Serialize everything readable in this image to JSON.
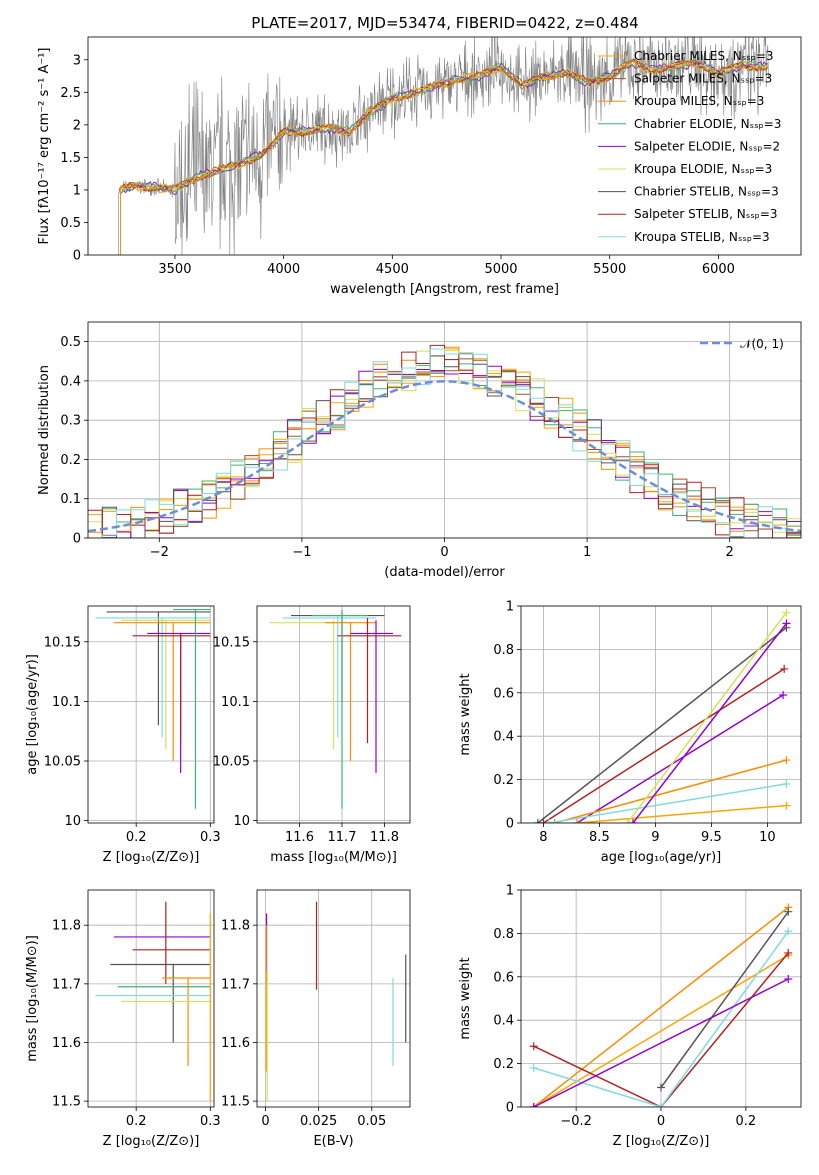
{
  "figure_title": "PLATE=2017, MJD=53474, FIBERID=0422, z=0.484",
  "colors": {
    "series": [
      "#ffa500",
      "#a0522d",
      "#ff8c00",
      "#3cb371",
      "#9400d3",
      "#d4e157",
      "#555555",
      "#b22222",
      "#7fdbe0"
    ],
    "grey": "#808080",
    "normal": "#6a8fd8"
  },
  "chart_data": [
    {
      "id": "spectrum",
      "type": "line",
      "xlabel": "wavelength [Angstrom, rest frame]",
      "ylabel": "Flux [fλ10⁻¹⁷ erg cm⁻² s⁻¹ A⁻¹]",
      "xlim": [
        3100,
        6380
      ],
      "ylim": [
        0,
        3.35
      ],
      "xticks": [
        3500,
        4000,
        4500,
        5000,
        5500,
        6000
      ],
      "yticks": [
        0.0,
        0.5,
        1.0,
        1.5,
        2.0,
        2.5,
        3.0
      ],
      "legend": [
        "Chabrier MILES, Nₛₛₚ=3",
        "Salpeter MILES, Nₛₛₚ=3",
        "Kroupa MILES, Nₛₛₚ=3",
        "Chabrier ELODIE, Nₛₛₚ=3",
        "Salpeter ELODIE, Nₛₛₚ=2",
        "Kroupa ELODIE, Nₛₛₚ=3",
        "Chabrier STELIB, Nₛₛₚ=3",
        "Salpeter STELIB, Nₛₛₚ=3",
        "Kroupa STELIB, Nₛₛₚ=3"
      ],
      "legend_position": "upper right",
      "model_x": [
        3250,
        3300,
        3400,
        3500,
        3600,
        3700,
        3800,
        3900,
        3950,
        4000,
        4100,
        4200,
        4300,
        4400,
        4500,
        4600,
        4700,
        4800,
        4900,
        5000,
        5100,
        5200,
        5300,
        5400,
        5500,
        5600,
        5700,
        5800,
        5900,
        6000,
        6100,
        6200
      ],
      "model_y": [
        1.0,
        1.05,
        1.05,
        1.0,
        1.2,
        1.3,
        1.4,
        1.55,
        1.7,
        1.9,
        1.9,
        1.95,
        1.9,
        2.2,
        2.4,
        2.5,
        2.6,
        2.7,
        2.75,
        2.9,
        2.6,
        2.75,
        2.8,
        2.65,
        2.75,
        2.95,
        2.85,
        2.9,
        2.95,
        2.8,
        2.9,
        2.9
      ]
    },
    {
      "id": "residuals",
      "type": "step",
      "xlabel": "(data-model)/error",
      "ylabel": "Normed distribution",
      "xlim": [
        -2.5,
        2.5
      ],
      "ylim": [
        0,
        0.55
      ],
      "xticks": [
        -2,
        -1,
        0,
        1,
        2
      ],
      "yticks": [
        0.0,
        0.1,
        0.2,
        0.3,
        0.4,
        0.5
      ],
      "legend": [
        "𝒩(0, 1)"
      ],
      "legend_position": "upper right"
    },
    {
      "id": "age_vs_Z",
      "type": "errorbar",
      "xlabel": "Z [log₁₀(Z/Z⊙)]",
      "ylabel": "age  [log₁₀(age/yr)]",
      "xlim": [
        0.135,
        0.305
      ],
      "ylim": [
        9.998,
        10.18
      ],
      "xticks": [
        0.2,
        0.3
      ],
      "yticks": [
        10.0,
        10.05,
        10.1,
        10.15
      ],
      "points": [
        {
          "x": 0.23,
          "y": 10.175,
          "xlo": 0.16,
          "xhi": 0.3,
          "ylo": 10.08,
          "yhi": 10.175,
          "c": 6
        },
        {
          "x": 0.235,
          "y": 10.17,
          "xlo": 0.145,
          "xhi": 0.3,
          "ylo": 10.07,
          "yhi": 10.17,
          "c": 8
        },
        {
          "x": 0.24,
          "y": 10.168,
          "xlo": 0.18,
          "xhi": 0.3,
          "ylo": 10.06,
          "yhi": 10.168,
          "c": 5
        },
        {
          "x": 0.25,
          "y": 10.166,
          "xlo": 0.17,
          "xhi": 0.3,
          "ylo": 10.05,
          "yhi": 10.166,
          "c": 2
        },
        {
          "x": 0.26,
          "y": 10.157,
          "xlo": 0.215,
          "xhi": 0.3,
          "ylo": 10.04,
          "yhi": 10.157,
          "c": 4
        },
        {
          "x": 0.26,
          "y": 10.155,
          "xlo": 0.195,
          "xhi": 0.3,
          "ylo": 10.065,
          "yhi": 10.155,
          "c": 7
        },
        {
          "x": 0.28,
          "y": 10.177,
          "xlo": 0.25,
          "xhi": 0.3,
          "ylo": 10.01,
          "yhi": 10.177,
          "c": 3
        }
      ]
    },
    {
      "id": "age_vs_mass",
      "type": "errorbar",
      "xlabel": "mass [log₁₀(M/M⊙)]",
      "ylabel": "",
      "xlim": [
        11.5,
        11.86
      ],
      "ylim": [
        9.998,
        10.18
      ],
      "xticks": [
        11.6,
        11.7,
        11.8
      ],
      "yticks": [
        10.0,
        10.05,
        10.1,
        10.15
      ],
      "points": [
        {
          "x": 11.7,
          "y": 10.172,
          "xlo": 11.58,
          "xhi": 11.8,
          "ylo": 10.1,
          "yhi": 10.175,
          "c": 6
        },
        {
          "x": 11.69,
          "y": 10.17,
          "xlo": 11.56,
          "xhi": 11.78,
          "ylo": 10.07,
          "yhi": 10.172,
          "c": 8
        },
        {
          "x": 11.68,
          "y": 10.166,
          "xlo": 11.53,
          "xhi": 11.72,
          "ylo": 10.06,
          "yhi": 10.168,
          "c": 5
        },
        {
          "x": 11.72,
          "y": 10.166,
          "xlo": 11.66,
          "xhi": 11.78,
          "ylo": 10.05,
          "yhi": 10.166,
          "c": 2
        },
        {
          "x": 11.78,
          "y": 10.157,
          "xlo": 11.72,
          "xhi": 11.82,
          "ylo": 10.04,
          "yhi": 10.168,
          "c": 4
        },
        {
          "x": 11.76,
          "y": 10.155,
          "xlo": 11.69,
          "xhi": 11.84,
          "ylo": 10.065,
          "yhi": 10.17,
          "c": 7
        },
        {
          "x": 11.7,
          "y": 10.172,
          "xlo": 11.63,
          "xhi": 11.76,
          "ylo": 10.01,
          "yhi": 10.177,
          "c": 3
        }
      ]
    },
    {
      "id": "massweight_vs_age",
      "type": "line",
      "xlabel": "age  [log₁₀(age/yr)]",
      "ylabel": "mass weight",
      "xlim": [
        7.8,
        10.3
      ],
      "ylim": [
        0,
        1
      ],
      "xticks": [
        8.0,
        8.5,
        9.0,
        9.5,
        10.0
      ],
      "yticks": [
        0.0,
        0.2,
        0.4,
        0.6,
        0.8,
        1.0
      ],
      "series": [
        {
          "x": [
            7.95,
            10.17
          ],
          "y": [
            0.0,
            0.9
          ],
          "c": 6
        },
        {
          "x": [
            8.0,
            10.15
          ],
          "y": [
            0.0,
            0.71
          ],
          "c": 7
        },
        {
          "x": [
            8.3,
            10.14
          ],
          "y": [
            0.0,
            0.59
          ],
          "c": 4
        },
        {
          "x": [
            8.1,
            10.17
          ],
          "y": [
            0.0,
            0.29
          ],
          "c": 2
        },
        {
          "x": [
            8.05,
            10.17
          ],
          "y": [
            0.0,
            0.18
          ],
          "c": 8
        },
        {
          "x": [
            8.3,
            10.17
          ],
          "y": [
            0.0,
            0.08
          ],
          "c": 0
        },
        {
          "x": [
            8.75,
            10.17
          ],
          "y": [
            0.0,
            0.97
          ],
          "c": 5
        },
        {
          "x": [
            8.8,
            10.17
          ],
          "y": [
            0.0,
            0.92
          ],
          "c": 4
        }
      ]
    },
    {
      "id": "mass_vs_Z",
      "type": "errorbar",
      "xlabel": "Z [log₁₀(Z/Z⊙)]",
      "ylabel": "mass [log₁₀(M/M⊙)]",
      "xlim": [
        0.135,
        0.305
      ],
      "ylim": [
        11.49,
        11.86
      ],
      "xticks": [
        0.2,
        0.3
      ],
      "yticks": [
        11.5,
        11.6,
        11.7,
        11.8
      ],
      "points": [
        {
          "x": 0.23,
          "y": 11.78,
          "xlo": 0.17,
          "xhi": 0.3,
          "ylo": 11.78,
          "yhi": 11.78,
          "c": 4
        },
        {
          "x": 0.24,
          "y": 11.758,
          "xlo": 0.195,
          "xhi": 0.3,
          "ylo": 11.7,
          "yhi": 11.84,
          "c": 7
        },
        {
          "x": 0.25,
          "y": 11.733,
          "xlo": 0.165,
          "xhi": 0.3,
          "ylo": 11.6,
          "yhi": 11.733,
          "c": 6
        },
        {
          "x": 0.27,
          "y": 11.71,
          "xlo": 0.235,
          "xhi": 0.3,
          "ylo": 11.56,
          "yhi": 11.71,
          "c": 2
        },
        {
          "x": 0.25,
          "y": 11.695,
          "xlo": 0.175,
          "xhi": 0.3,
          "ylo": 11.695,
          "yhi": 11.695,
          "c": 3
        },
        {
          "x": 0.24,
          "y": 11.68,
          "xlo": 0.145,
          "xhi": 0.3,
          "ylo": 11.68,
          "yhi": 11.68,
          "c": 8
        },
        {
          "x": 0.25,
          "y": 11.67,
          "xlo": 0.18,
          "xhi": 0.3,
          "ylo": 11.67,
          "yhi": 11.67,
          "c": 5
        },
        {
          "x": 0.3,
          "y": 11.7,
          "xlo": 0.3,
          "xhi": 0.3,
          "ylo": 11.5,
          "yhi": 11.82,
          "c": 0
        }
      ]
    },
    {
      "id": "mass_vs_ebv",
      "type": "errorbar",
      "xlabel": "E(B-V)",
      "ylabel": "",
      "xlim": [
        -0.004,
        0.068
      ],
      "ylim": [
        11.49,
        11.86
      ],
      "xticks": [
        0.0,
        0.025,
        0.05
      ],
      "yticks": [
        11.5,
        11.6,
        11.7,
        11.8
      ],
      "points": [
        {
          "x": 0.024,
          "y": 11.76,
          "xlo": 0.024,
          "xhi": 0.024,
          "ylo": 11.69,
          "yhi": 11.84,
          "c": 7
        },
        {
          "x": 0.06,
          "y": 11.64,
          "xlo": 0.06,
          "xhi": 0.06,
          "ylo": 11.56,
          "yhi": 11.71,
          "c": 8
        },
        {
          "x": 0.066,
          "y": 11.67,
          "xlo": 0.066,
          "xhi": 0.066,
          "ylo": 11.6,
          "yhi": 11.75,
          "c": 6
        },
        {
          "x": 0.0005,
          "y": 11.75,
          "xlo": 0.0005,
          "xhi": 0.0005,
          "ylo": 11.7,
          "yhi": 11.82,
          "c": 4
        },
        {
          "x": 0.0008,
          "y": 11.62,
          "xlo": 0.0008,
          "xhi": 0.0008,
          "ylo": 11.5,
          "yhi": 11.72,
          "c": 5
        },
        {
          "x": 0.0003,
          "y": 11.7,
          "xlo": 0.0003,
          "xhi": 0.0003,
          "ylo": 11.55,
          "yhi": 11.8,
          "c": 0
        }
      ]
    },
    {
      "id": "massweight_vs_Z",
      "type": "line",
      "xlabel": "Z [log₁₀(Z/Z⊙)]",
      "ylabel": "mass weight",
      "xlim": [
        -0.33,
        0.33
      ],
      "ylim": [
        0,
        1
      ],
      "xticks": [
        -0.2,
        0.0,
        0.2
      ],
      "yticks": [
        0.0,
        0.2,
        0.4,
        0.6,
        0.8,
        1.0
      ],
      "series": [
        {
          "x": [
            -0.3,
            0.3
          ],
          "y": [
            0.0,
            0.92
          ],
          "c": 2
        },
        {
          "x": [
            -0.3,
            0.3
          ],
          "y": [
            0.0,
            0.7
          ],
          "c": 0
        },
        {
          "x": [
            -0.3,
            0.0,
            0.3
          ],
          "y": [
            0.28,
            0.0,
            0.71
          ],
          "c": 7
        },
        {
          "x": [
            -0.3,
            0.0,
            0.3
          ],
          "y": [
            0.18,
            0.0,
            0.81
          ],
          "c": 8
        },
        {
          "x": [
            0.0,
            0.3
          ],
          "y": [
            0.09,
            0.9
          ],
          "c": 6
        },
        {
          "x": [
            -0.3,
            0.3
          ],
          "y": [
            0.0,
            0.59
          ],
          "c": 4
        }
      ]
    }
  ]
}
